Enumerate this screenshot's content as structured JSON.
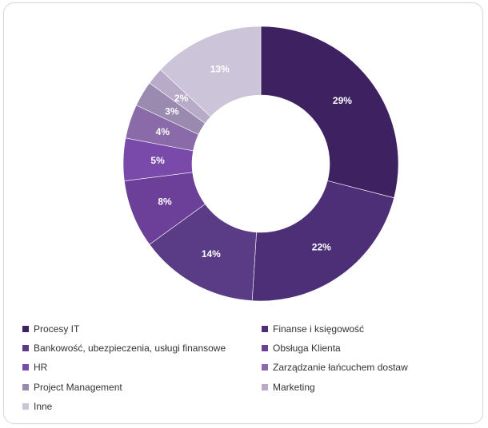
{
  "chart_data": {
    "type": "pie",
    "donut": true,
    "title": "",
    "categories": [
      "Procesy IT",
      "Finanse i księgowość",
      "Bankowość, ubezpieczenia, usługi finansowe",
      "Obsługa Klienta",
      "HR",
      "Zarządzanie łańcuchem dostaw",
      "Project Management",
      "Marketing",
      "Inne"
    ],
    "values": [
      29,
      22,
      14,
      8,
      5,
      4,
      3,
      2,
      13
    ],
    "labels": [
      "29%",
      "22%",
      "14%",
      "8%",
      "5%",
      "4%",
      "3%",
      "2%",
      "13%"
    ],
    "colors": [
      "#3d2160",
      "#4d2f77",
      "#5a3b86",
      "#6c3f98",
      "#7a4aaa",
      "#8a6aa8",
      "#9a8ab0",
      "#b8aac9",
      "#ccc4d8"
    ],
    "legend_position": "bottom"
  }
}
